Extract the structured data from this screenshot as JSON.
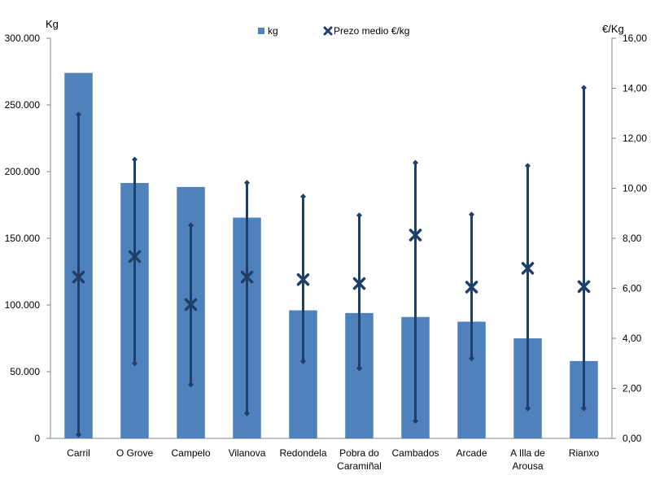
{
  "chart_data": {
    "type": "bar",
    "categories": [
      [
        "Carril"
      ],
      [
        "O Grove"
      ],
      [
        "Campelo"
      ],
      [
        "Vilanova"
      ],
      [
        "Redondela"
      ],
      [
        "Pobra do",
        "Caramiñal"
      ],
      [
        "Cambados"
      ],
      [
        "Arcade"
      ],
      [
        "A Illa de",
        "Arousa"
      ],
      [
        "Rianxo"
      ]
    ],
    "series": [
      {
        "name": "kg",
        "type": "bar",
        "axis": "left",
        "color": "#4F81BD",
        "values": [
          274000,
          191500,
          188500,
          165500,
          96000,
          94000,
          91000,
          87500,
          75000,
          58000
        ]
      },
      {
        "name": "Prezo medio €/kg",
        "type": "range-marker",
        "axis": "right",
        "color": "#1F3F6B",
        "mid": [
          6.45,
          7.27,
          5.35,
          6.45,
          6.35,
          6.19,
          8.13,
          6.05,
          6.8,
          6.07
        ],
        "high": [
          12.95,
          11.15,
          8.52,
          10.22,
          9.67,
          8.92,
          11.02,
          8.95,
          10.9,
          14.02
        ],
        "low": [
          0.15,
          3.0,
          2.15,
          1.0,
          3.08,
          2.8,
          0.7,
          3.2,
          1.2,
          1.2
        ]
      }
    ],
    "y_left": {
      "label": "Kg",
      "ylim": [
        0,
        300000
      ],
      "ticks": [
        "0",
        "50.000",
        "100.000",
        "150.000",
        "200.000",
        "250.000",
        "300.000"
      ]
    },
    "y_right": {
      "label": "€/Kg",
      "ylim": [
        0,
        16
      ],
      "ticks": [
        "0,00",
        "2,00",
        "4,00",
        "6,00",
        "8,00",
        "10,00",
        "12,00",
        "14,00",
        "16,00"
      ]
    },
    "legend": {
      "position": "top-center",
      "items": [
        "kg",
        "Prezo medio €/kg"
      ]
    },
    "grid": false
  }
}
